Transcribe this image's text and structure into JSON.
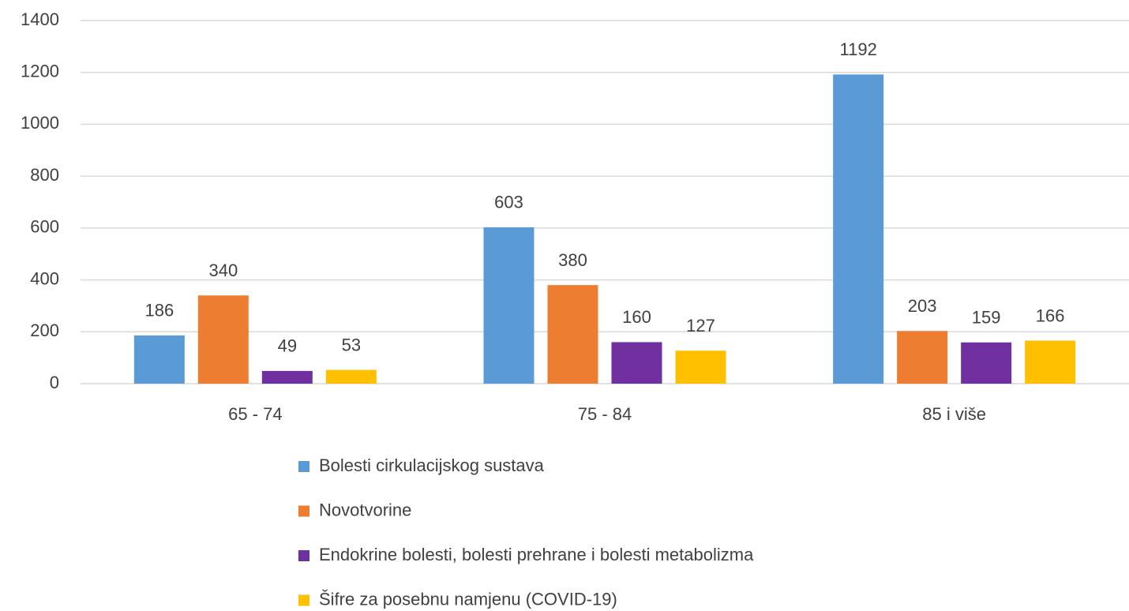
{
  "chart_data": {
    "type": "bar",
    "categories": [
      "65 - 74",
      "75 - 84",
      "85 i više"
    ],
    "series": [
      {
        "name": "Bolesti cirkulacijskog sustava",
        "color": "#5b9bd5",
        "values": [
          186,
          603,
          1192
        ]
      },
      {
        "name": "Novotvorine",
        "color": "#ed7d31",
        "values": [
          340,
          380,
          203
        ]
      },
      {
        "name": "Endokrine bolesti, bolesti prehrane i bolesti metabolizma",
        "color": "#7030a0",
        "values": [
          49,
          160,
          159
        ]
      },
      {
        "name": "Šifre za posebnu namjenu (COVID-19)",
        "color": "#ffc000",
        "values": [
          53,
          127,
          166
        ]
      }
    ],
    "ylim": [
      0,
      1400
    ],
    "yticks": [
      0,
      200,
      400,
      600,
      800,
      1000,
      1200,
      1400
    ],
    "grid": true,
    "legend": "bottom"
  }
}
